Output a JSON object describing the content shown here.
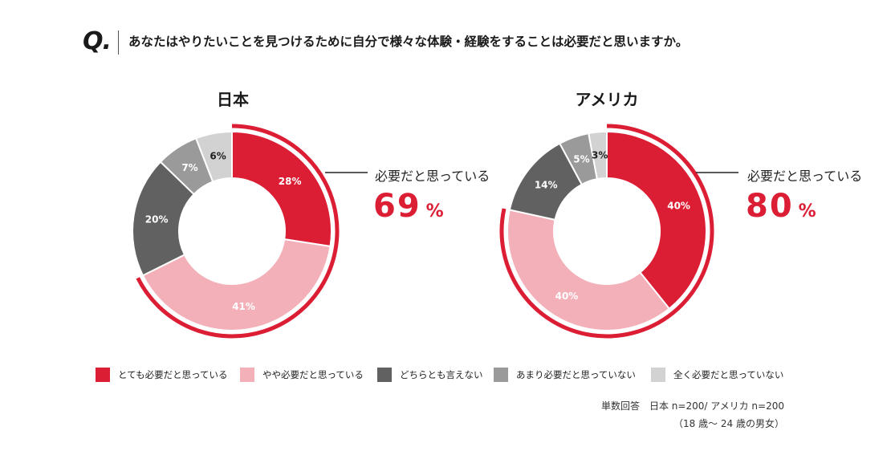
{
  "header": {
    "q_mark": "Q.",
    "question": "あなたはやりたいことを見つけるために自分で様々な体験・経験をすることは必要だと思いますか。"
  },
  "chart_data": [
    {
      "type": "pie",
      "title": "日本",
      "categories": [
        "とても必要だと思っている",
        "やや必要だと思っている",
        "どちらとも言えない",
        "あまり必要だと思っていない",
        "全く必要だと思っていない"
      ],
      "values": [
        28,
        41,
        20,
        7,
        6
      ],
      "labels": [
        "28%",
        "41%",
        "20%",
        "7%",
        "6%"
      ],
      "callout_label": "必要だと思っている",
      "callout_value": "69",
      "callout_unit": "%"
    },
    {
      "type": "pie",
      "title": "アメリカ",
      "categories": [
        "とても必要だと思っている",
        "やや必要だと思っている",
        "どちらとも言えない",
        "あまり必要だと思っていない",
        "全く必要だと思っていない"
      ],
      "values": [
        40,
        40,
        14,
        5,
        3
      ],
      "labels": [
        "40%",
        "40%",
        "14%",
        "5%",
        "3%"
      ],
      "callout_label": "必要だと思っている",
      "callout_value": "80",
      "callout_unit": "%"
    }
  ],
  "colors": [
    "#dc1e35",
    "#f3b0b8",
    "#616161",
    "#9a9a9a",
    "#d2d2d2"
  ],
  "legend": [
    {
      "label": "とても必要だと思っている"
    },
    {
      "label": "やや必要だと思っている"
    },
    {
      "label": "どちらとも言えない"
    },
    {
      "label": "あまり必要だと思っていない"
    },
    {
      "label": "全く必要だと思っていない"
    }
  ],
  "notes": {
    "sample": "単数回答　日本 n=200/ アメリカ n=200",
    "age": "（18 歳～ 24 歳の男女）"
  }
}
